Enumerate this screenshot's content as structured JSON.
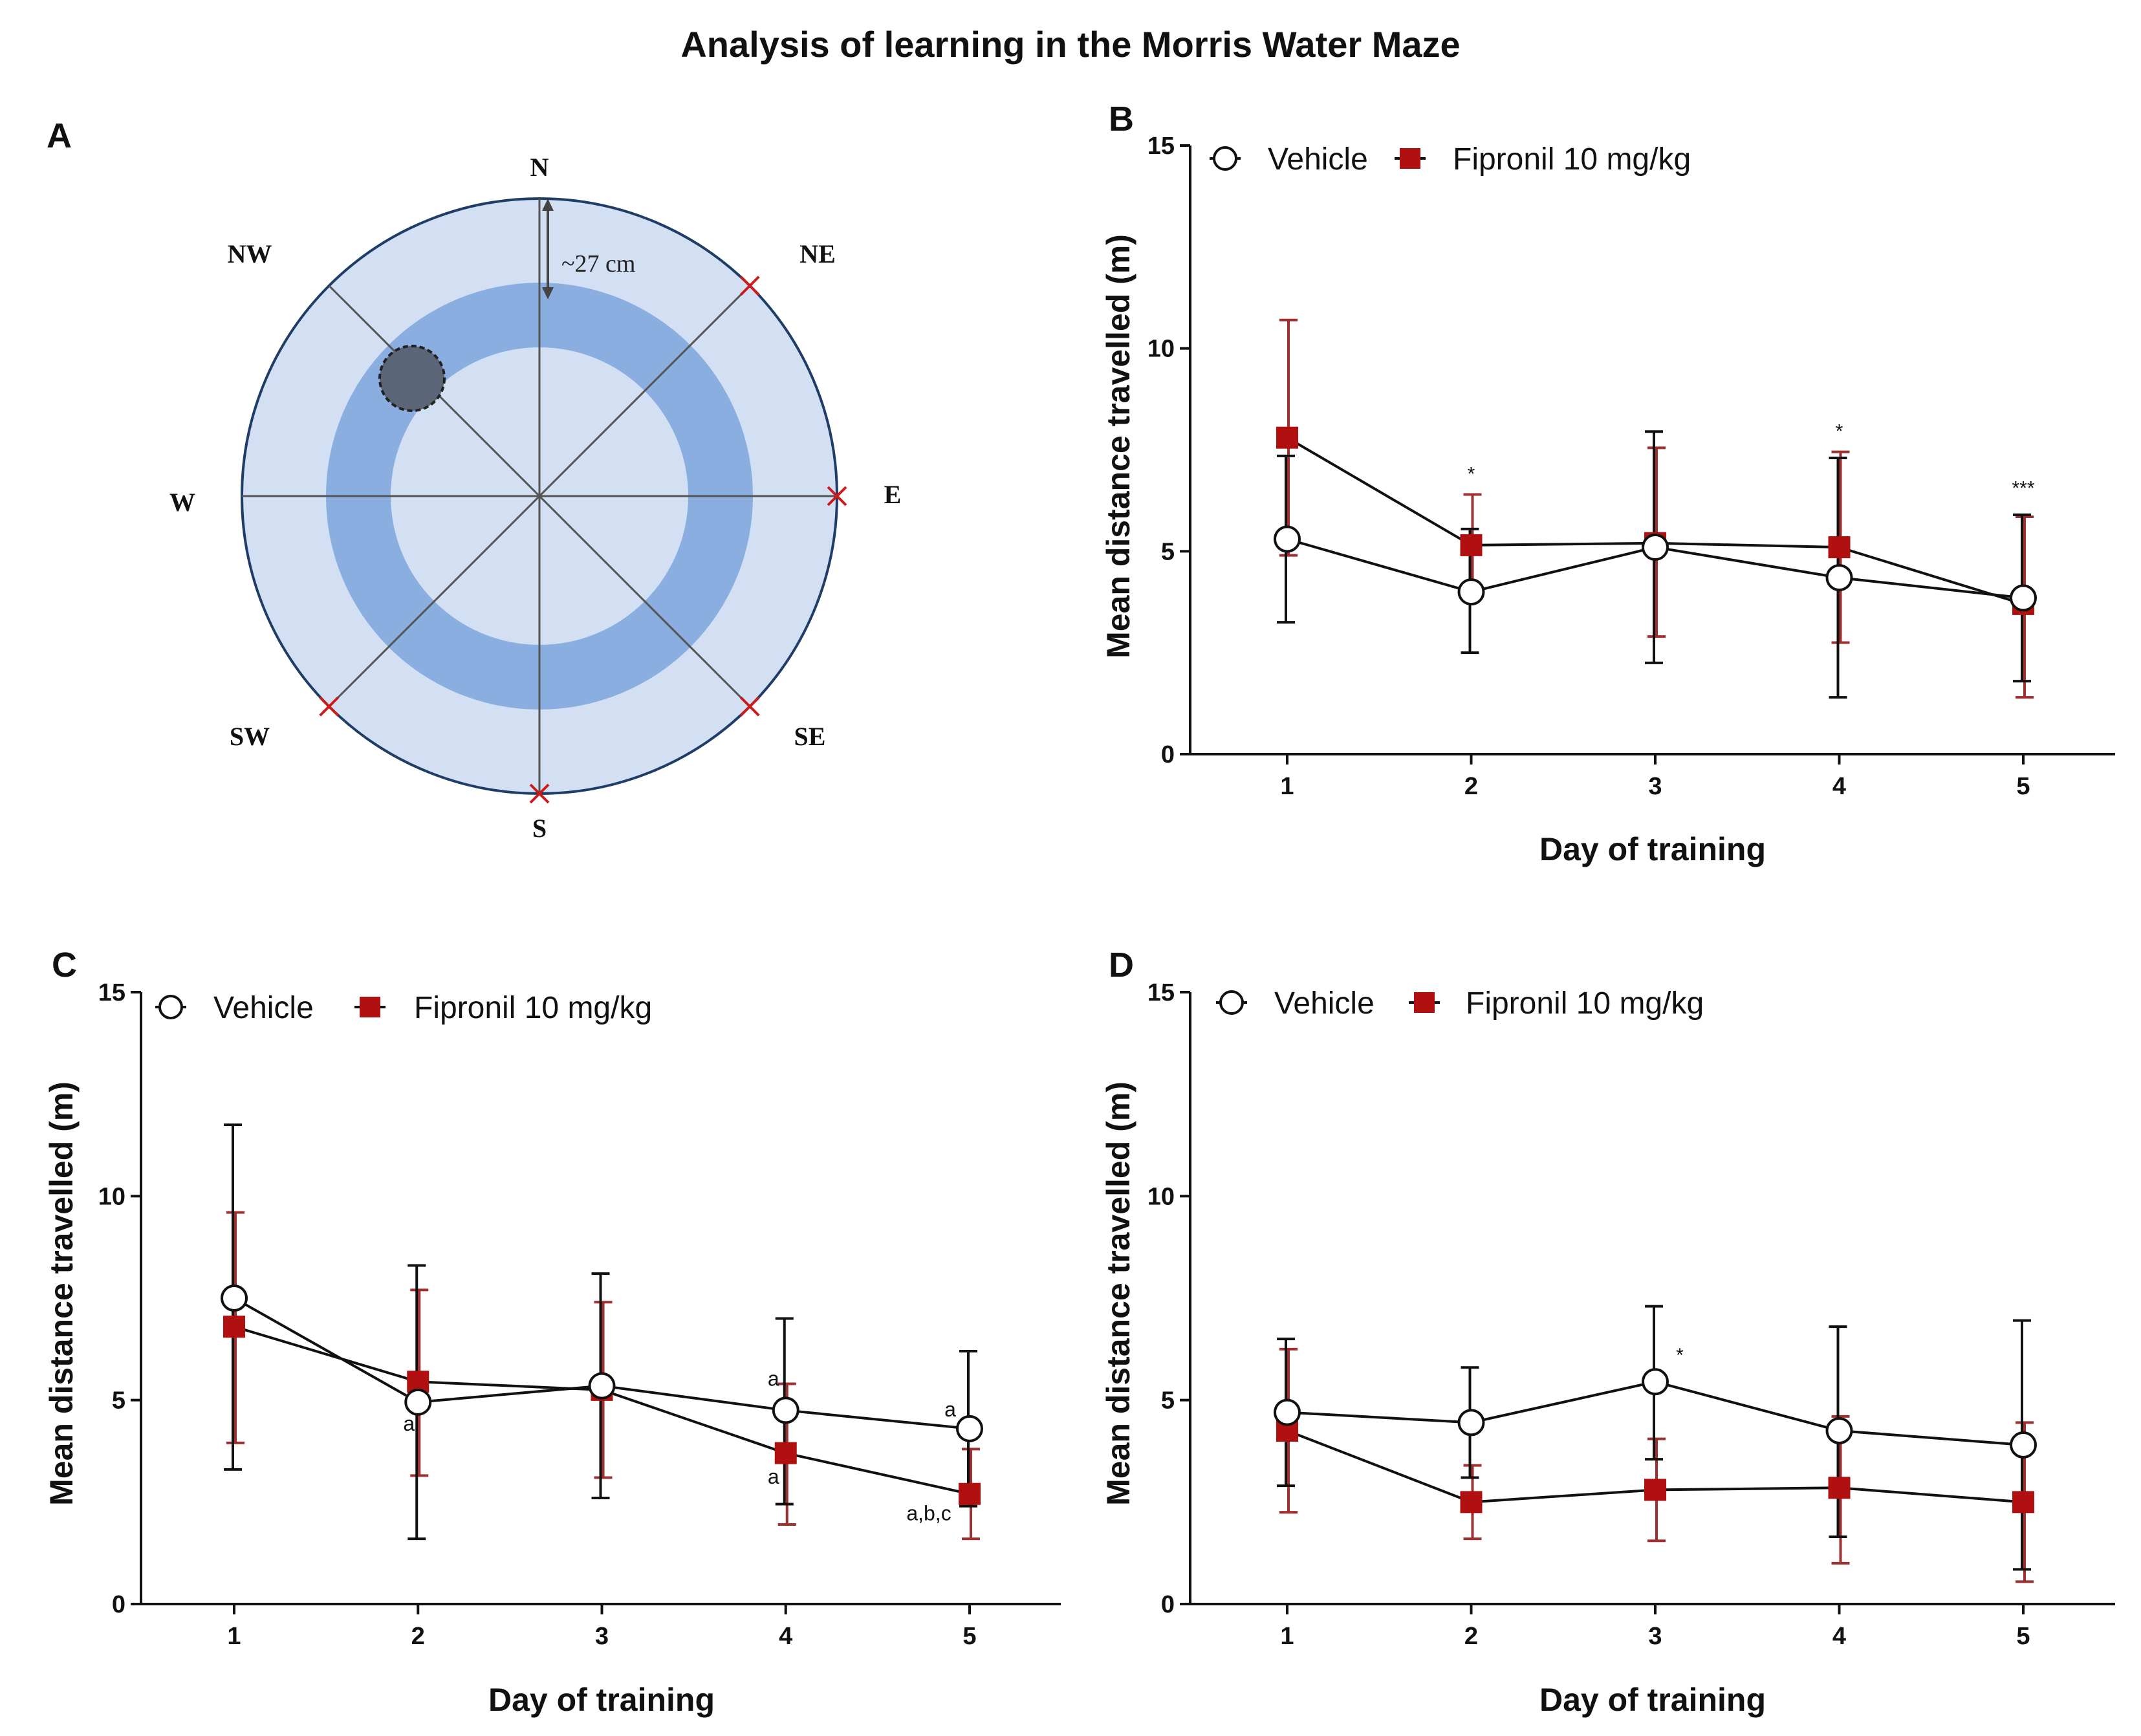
{
  "title": "Analysis of learning in the Morris Water Maze",
  "colors": {
    "vehicle": "#111111",
    "fipronil": "#b01010",
    "fipronil_error": "#a03030",
    "pool_outer": "#d3e0f4",
    "pool_ring": "#8aaee0",
    "pool_border": "#1f3d66",
    "start_marker": "#cc1b1b",
    "platform": "#5b6578"
  },
  "panel_a": {
    "letter": "A",
    "compass": {
      "N": "N",
      "NE": "NE",
      "E": "E",
      "SE": "SE",
      "S": "S",
      "SW": "SW",
      "W": "W",
      "NW": "NW"
    },
    "distance_label": "~27 cm",
    "platform_icon": "hidden-platform-hatched-circle",
    "start_marker_icon": "red-x-start-marker"
  },
  "chart_data": [
    {
      "panel": "B",
      "type": "line",
      "xlabel": "Day of training",
      "ylabel": "Mean distance travelled (m)",
      "categories": [
        "1",
        "2",
        "3",
        "4",
        "5"
      ],
      "ylim": [
        0,
        15
      ],
      "yticks": [
        "0",
        "5",
        "10",
        "15"
      ],
      "legend": {
        "vehicle": "Vehicle",
        "fipronil": "Fipronil 10 mg/kg"
      },
      "series": [
        {
          "name": "Vehicle",
          "marker": "open-circle",
          "values": [
            5.3,
            4.0,
            5.1,
            4.35,
            3.85
          ],
          "error_high": [
            7.35,
            5.55,
            7.95,
            7.3,
            5.9
          ],
          "error_low": [
            3.25,
            2.5,
            2.25,
            1.4,
            1.8
          ]
        },
        {
          "name": "Fipronil 10 mg/kg",
          "marker": "filled-square",
          "values": [
            7.8,
            5.15,
            5.2,
            5.1,
            3.7
          ],
          "error_high": [
            10.7,
            6.4,
            7.55,
            7.45,
            5.85
          ],
          "error_low": [
            4.9,
            3.9,
            2.9,
            2.75,
            1.4
          ]
        }
      ],
      "annotations": [
        {
          "day": 2,
          "y": 6.75,
          "text": "*",
          "cls": "annot-star"
        },
        {
          "day": 4,
          "y": 7.8,
          "text": "*",
          "cls": "annot-star"
        },
        {
          "day": 5,
          "y": 6.4,
          "text": "***",
          "cls": "annot-star"
        }
      ]
    },
    {
      "panel": "C",
      "type": "line",
      "xlabel": "Day of training",
      "ylabel": "Mean distance travelled (m)",
      "categories": [
        "1",
        "2",
        "3",
        "4",
        "5"
      ],
      "ylim": [
        0,
        15
      ],
      "yticks": [
        "0",
        "5",
        "10",
        "15"
      ],
      "legend": {
        "vehicle": "Vehicle",
        "fipronil": "Fipronil 10 mg/kg"
      },
      "series": [
        {
          "name": "Vehicle",
          "marker": "open-circle",
          "values": [
            7.5,
            4.95,
            5.35,
            4.75,
            4.3
          ],
          "error_high": [
            11.75,
            8.3,
            8.1,
            7.0,
            6.2
          ],
          "error_low": [
            3.3,
            1.6,
            2.6,
            2.45,
            2.4
          ]
        },
        {
          "name": "Fipronil 10 mg/kg",
          "marker": "filled-square",
          "values": [
            6.8,
            5.45,
            5.25,
            3.7,
            2.7
          ],
          "error_high": [
            9.6,
            7.7,
            7.4,
            5.4,
            3.8
          ],
          "error_low": [
            3.95,
            3.15,
            3.1,
            1.95,
            1.6
          ]
        }
      ],
      "annotations": [
        {
          "day": 2,
          "y": 4.25,
          "dx": -14,
          "text": "a",
          "cls": "annot"
        },
        {
          "day": 4,
          "y": 5.35,
          "dx": -19,
          "text": "a",
          "cls": "annot"
        },
        {
          "day": 4,
          "y": 2.95,
          "dx": -19,
          "text": "a",
          "cls": "annot"
        },
        {
          "day": 5,
          "y": 4.6,
          "dx": -30,
          "text": "a",
          "cls": "annot"
        },
        {
          "day": 5,
          "y": 2.05,
          "dx": -63,
          "text": "a,b,c",
          "cls": "annot"
        }
      ]
    },
    {
      "panel": "D",
      "type": "line",
      "xlabel": "Day of training",
      "ylabel": "Mean distance travelled (m)",
      "categories": [
        "1",
        "2",
        "3",
        "4",
        "5"
      ],
      "ylim": [
        0,
        15
      ],
      "yticks": [
        "0",
        "5",
        "10",
        "15"
      ],
      "legend": {
        "vehicle": "Vehicle",
        "fipronil": "Fipronil 10 mg/kg"
      },
      "series": [
        {
          "name": "Vehicle",
          "marker": "open-circle",
          "values": [
            4.7,
            4.45,
            5.45,
            4.25,
            3.9
          ],
          "error_high": [
            6.5,
            5.8,
            7.3,
            6.8,
            6.95
          ],
          "error_low": [
            2.9,
            3.1,
            3.55,
            1.65,
            0.85
          ]
        },
        {
          "name": "Fipronil 10 mg/kg",
          "marker": "filled-square",
          "values": [
            4.25,
            2.5,
            2.8,
            2.85,
            2.5
          ],
          "error_high": [
            6.25,
            3.4,
            4.05,
            4.6,
            4.45
          ],
          "error_low": [
            2.25,
            1.6,
            1.55,
            1.0,
            0.55
          ]
        }
      ],
      "annotations": [
        {
          "day": 3,
          "y": 5.95,
          "dx": 38,
          "text": "*",
          "cls": "annot-star"
        }
      ]
    }
  ]
}
